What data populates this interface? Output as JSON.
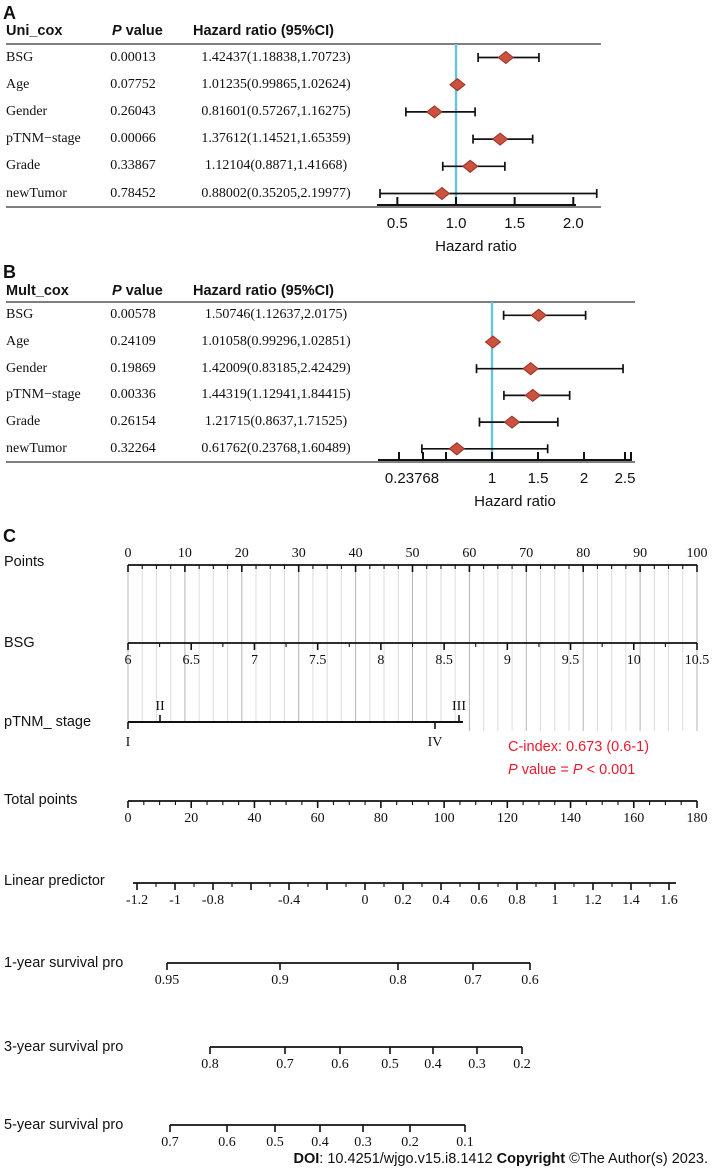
{
  "colors": {
    "diamond_fill": "#cc5240",
    "diamond_stroke": "#993326",
    "reference_line": "#66c6d8",
    "highlight_text": "#e8192c",
    "axis": "#111111",
    "grid_major": "#b5b5b5",
    "grid_minor": "#dcdcdc"
  },
  "chart_data": [
    {
      "type": "forest",
      "panel_label": "A",
      "columns": {
        "group": "Uni_cox",
        "p_parts": [
          {
            "text": "P",
            "italic": true
          },
          {
            "text": " value",
            "italic": false
          }
        ],
        "hr": "Hazard ratio (95%CI)"
      },
      "rows": [
        {
          "name": "BSG",
          "p_value": "0.00013",
          "hr_ci_text": "1.42437(1.18838,1.70723)",
          "hr": 1.42437,
          "ci_low": 1.18838,
          "ci_high": 1.70723
        },
        {
          "name": "Age",
          "p_value": "0.07752",
          "hr_ci_text": "1.01235(0.99865,1.02624)",
          "hr": 1.01235,
          "ci_low": 0.99865,
          "ci_high": 1.02624
        },
        {
          "name": "Gender",
          "p_value": "0.26043",
          "hr_ci_text": "0.81601(0.57267,1.16275)",
          "hr": 0.81601,
          "ci_low": 0.57267,
          "ci_high": 1.16275
        },
        {
          "name": "pTNM−stage",
          "p_value": "0.00066",
          "hr_ci_text": "1.37612(1.14521,1.65359)",
          "hr": 1.37612,
          "ci_low": 1.14521,
          "ci_high": 1.65359
        },
        {
          "name": "Grade",
          "p_value": "0.33867",
          "hr_ci_text": "1.12104(0.8871,1.41668)",
          "hr": 1.12104,
          "ci_low": 0.8871,
          "ci_high": 1.41668
        },
        {
          "name": "newTumor",
          "p_value": "0.78452",
          "hr_ci_text": "0.88002(0.35205,2.19977)",
          "hr": 0.88002,
          "ci_low": 0.35205,
          "ci_high": 2.19977
        }
      ],
      "ref_line": 1.0,
      "axis": {
        "label": "Hazard ratio",
        "ticks": [
          {
            "value": 0.5,
            "label": "0.5"
          },
          {
            "value": 1.0,
            "label": "1.0"
          },
          {
            "value": 1.5,
            "label": "1.5"
          },
          {
            "value": 2.0,
            "label": "2.0"
          }
        ]
      }
    },
    {
      "type": "forest",
      "panel_label": "B",
      "columns": {
        "group": "Mult_cox",
        "p_parts": [
          {
            "text": "P",
            "italic": true
          },
          {
            "text": " value",
            "italic": false
          }
        ],
        "hr": "Hazard ratio (95%CI)"
      },
      "rows": [
        {
          "name": "BSG",
          "p_value": "0.00578",
          "hr_ci_text": "1.50746(1.12637,2.0175)",
          "hr": 1.50746,
          "ci_low": 1.12637,
          "ci_high": 2.0175
        },
        {
          "name": "Age",
          "p_value": "0.24109",
          "hr_ci_text": "1.01058(0.99296,1.02851)",
          "hr": 1.01058,
          "ci_low": 0.99296,
          "ci_high": 1.02851
        },
        {
          "name": "Gender",
          "p_value": "0.19869",
          "hr_ci_text": "1.42009(0.83185,2.42429)",
          "hr": 1.42009,
          "ci_low": 0.83185,
          "ci_high": 2.42429
        },
        {
          "name": "pTNM−stage",
          "p_value": "0.00336",
          "hr_ci_text": "1.44319(1.12941,1.84415)",
          "hr": 1.44319,
          "ci_low": 1.12941,
          "ci_high": 1.84415
        },
        {
          "name": "Grade",
          "p_value": "0.26154",
          "hr_ci_text": "1.21715(0.8637,1.71525)",
          "hr": 1.21715,
          "ci_low": 0.8637,
          "ci_high": 1.71525
        },
        {
          "name": "newTumor",
          "p_value": "0.32264",
          "hr_ci_text": "0.61762(0.23768,1.60489)",
          "hr": 0.61762,
          "ci_low": 0.23768,
          "ci_high": 1.60489
        }
      ],
      "ref_line": 1.0,
      "axis": {
        "label": "Hazard ratio",
        "ticks": [
          {
            "label": "0.23768"
          },
          {
            "label": ""
          },
          {
            "label": ""
          },
          {
            "value": 1,
            "label": "1"
          },
          {
            "value": 1.5,
            "label": "1.5"
          },
          {
            "value": 2,
            "label": "2"
          },
          {
            "value": 2.5,
            "label": "2.5"
          },
          {
            "label": ""
          }
        ]
      }
    },
    {
      "type": "nomogram",
      "panel_label": "C",
      "axes": [
        {
          "name": "Points",
          "ticks": [
            "0",
            "10",
            "20",
            "30",
            "40",
            "50",
            "60",
            "70",
            "80",
            "90",
            "100"
          ]
        },
        {
          "name": "BSG",
          "ticks": [
            "6",
            "6.5",
            "7",
            "7.5",
            "8",
            "8.5",
            "9",
            "9.5",
            "10",
            "10.5"
          ]
        },
        {
          "name": "pTNM_ stage",
          "categories_above": [
            "II",
            "III"
          ],
          "categories_below": [
            "I",
            "IV"
          ]
        },
        {
          "name": "Total points",
          "ticks": [
            "0",
            "20",
            "40",
            "60",
            "80",
            "100",
            "120",
            "140",
            "160",
            "180"
          ]
        },
        {
          "name": "Linear predictor",
          "ticks": [
            "-1.2",
            "-1",
            "-0.8",
            "",
            "-0.4",
            "",
            "0",
            "0.2",
            "0.4",
            "0.6",
            "0.8",
            "1",
            "1.2",
            "1.4",
            "1.6"
          ]
        },
        {
          "name": "1-year survival pro",
          "ticks": [
            "0.95",
            "0.9",
            "0.8",
            "0.7",
            "0.6"
          ]
        },
        {
          "name": "3-year survival pro",
          "ticks": [
            "0.8",
            "0.7",
            "0.6",
            "0.5",
            "0.4",
            "0.3",
            "0.2"
          ]
        },
        {
          "name": "5-year survival pro",
          "ticks": [
            "0.7",
            "0.6",
            "0.5",
            "0.4",
            "0.3",
            "0.2",
            "0.1"
          ]
        }
      ],
      "annotation": {
        "c_index": "C-index: 0.673 (0.6-1)",
        "p_parts": [
          {
            "text": "P",
            "italic": true
          },
          {
            "text": " value = ",
            "italic": false
          },
          {
            "text": "P",
            "italic": true
          },
          {
            "text": " < 0.001",
            "italic": false
          }
        ]
      }
    }
  ],
  "footer": {
    "doi_label": "DOI",
    "doi_rest": ": 10.4251/wjgo.v15.i8.1412 ",
    "copyright_label": "Copyright",
    "copyright_rest": " ©The Author(s) 2023."
  }
}
